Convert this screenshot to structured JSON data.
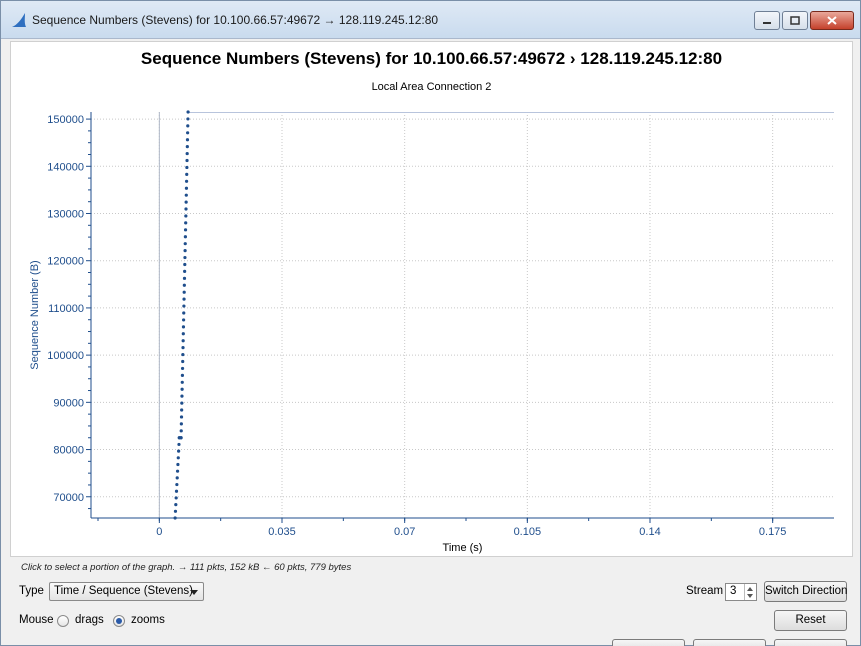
{
  "window": {
    "title": "Sequence Numbers (Stevens) for 10.100.66.57:49672 → 128.119.245.12:80",
    "minimize_icon": "minimize-icon",
    "maximize_icon": "maximize-icon",
    "close_icon": "close-icon",
    "app_icon": "wireshark-fin-icon"
  },
  "chart_data": {
    "type": "scatter",
    "title": "Sequence Numbers (Stevens) for 10.100.66.57:49672   › 128.119.245.12:80",
    "subtitle": "Local Area Connection 2",
    "xlabel": "Time (s)",
    "ylabel": "Sequence Number (B)",
    "xlim": [
      -0.0195,
      0.1925
    ],
    "ylim": [
      65500,
      151500
    ],
    "xticks": [
      0,
      0.035,
      0.07,
      0.105,
      0.14,
      0.175
    ],
    "xtick_labels": [
      "0",
      "0.035",
      "0.07",
      "0.105",
      "0.14",
      "0.175"
    ],
    "yticks": [
      70000,
      80000,
      90000,
      100000,
      110000,
      120000,
      130000,
      140000,
      150000
    ],
    "ytick_labels": [
      "70000",
      "80000",
      "90000",
      "100000",
      "110000",
      "120000",
      "130000",
      "140000",
      "150000"
    ],
    "grid": true,
    "series_color": "#1f4e8c",
    "axis_color": "#1f4e8c",
    "series": [
      {
        "segments": [
          {
            "t0": 0.0045,
            "t1": 0.0057,
            "s0": 65500,
            "s1": 82500
          },
          {
            "t0": 0.0057,
            "t1": 0.0062,
            "s0": 82500,
            "s1": 82500
          },
          {
            "t0": 0.0062,
            "t1": 0.0082,
            "s0": 82500,
            "s1": 151500
          }
        ],
        "step_bytes": 1460
      }
    ]
  },
  "controls": {
    "hint": "Click to select a portion of the graph. → 111 pkts, 152 kB ← 60 pkts, 779 bytes",
    "type_label": "Type",
    "type_value": "Time / Sequence (Stevens)",
    "stream_label": "Stream",
    "stream_value": "3",
    "switch_direction": "Switch Direction",
    "mouse_label": "Mouse",
    "drags_label": "drags",
    "zooms_label": "zooms",
    "mouse_mode": "zooms",
    "reset": "Reset"
  }
}
